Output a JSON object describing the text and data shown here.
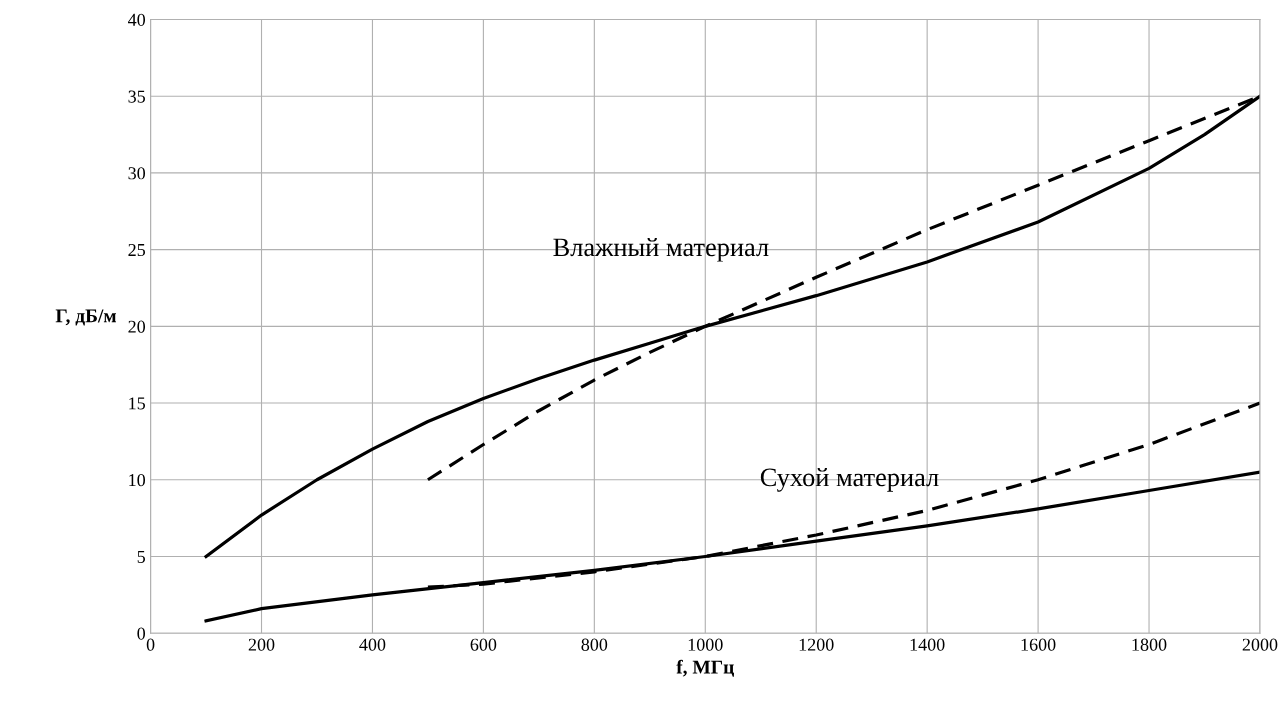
{
  "chart_data": {
    "type": "line",
    "xlabel": "f, МГц",
    "ylabel": "Г, дБ/м",
    "xlim": [
      0,
      2000
    ],
    "xticks": [
      0,
      200,
      400,
      600,
      800,
      1000,
      1200,
      1400,
      1600,
      1800,
      2000
    ],
    "ylim": [
      0,
      40
    ],
    "yticks": [
      0,
      5,
      10,
      15,
      20,
      25,
      30,
      35,
      40
    ],
    "grid": true,
    "legend": false,
    "marker": "none",
    "series": [
      {
        "color": "#000000",
        "line_style": "solid",
        "x": [
          100,
          200,
          300,
          400,
          500,
          600,
          700,
          800,
          900,
          1000,
          1200,
          1400,
          1600,
          1800,
          1900,
          2000
        ],
        "values": [
          5,
          7.7,
          10,
          12,
          13.8,
          15.3,
          16.6,
          17.8,
          18.9,
          20,
          22,
          24.2,
          26.8,
          30.3,
          32.5,
          35
        ]
      },
      {
        "color": "#000000",
        "line_style": "dashed",
        "x": [
          500,
          600,
          700,
          800,
          900,
          1000,
          1200,
          1400,
          1600,
          1800,
          2000
        ],
        "values": [
          10,
          12.3,
          14.5,
          16.5,
          18.3,
          20,
          23.2,
          26.3,
          29.2,
          32.1,
          35
        ]
      },
      {
        "color": "#000000",
        "line_style": "solid",
        "x": [
          100,
          200,
          400,
          600,
          800,
          1000,
          1200,
          1400,
          1600,
          1800,
          2000
        ],
        "values": [
          0.8,
          1.6,
          2.5,
          3.3,
          4.1,
          5,
          6,
          7,
          8.1,
          9.3,
          10.5
        ]
      },
      {
        "color": "#000000",
        "line_style": "dashed",
        "x": [
          500,
          600,
          800,
          1000,
          1200,
          1400,
          1600,
          1800,
          2000
        ],
        "values": [
          3,
          3.2,
          4,
          5,
          6.4,
          8,
          10,
          12.3,
          15
        ]
      }
    ],
    "annotations": [
      "Влажный материал",
      "Сухой материал"
    ]
  }
}
